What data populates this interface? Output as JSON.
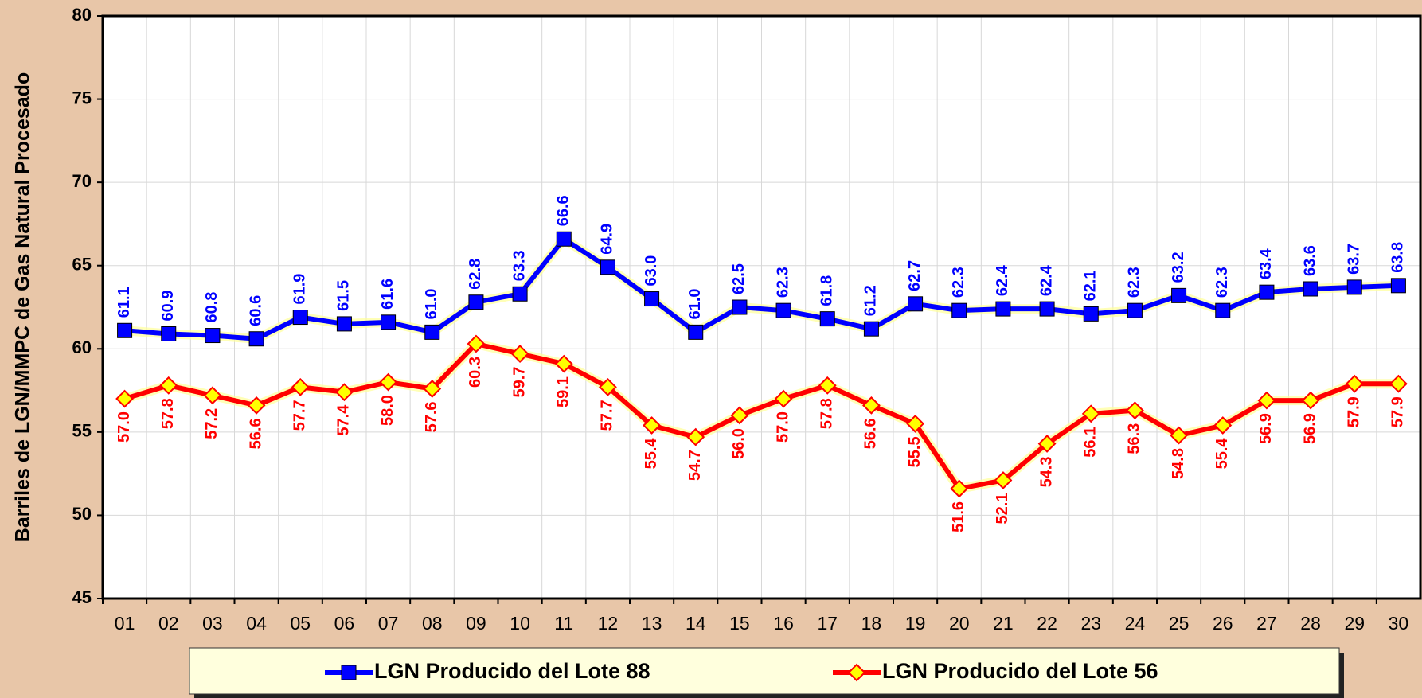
{
  "chart_data": {
    "type": "line",
    "y_label": "Barriles de LGN/MMPC de Gas Natural Procesado",
    "categories": [
      "01",
      "02",
      "03",
      "04",
      "05",
      "06",
      "07",
      "08",
      "09",
      "10",
      "11",
      "12",
      "13",
      "14",
      "15",
      "16",
      "17",
      "18",
      "19",
      "20",
      "21",
      "22",
      "23",
      "24",
      "25",
      "26",
      "27",
      "28",
      "29",
      "30"
    ],
    "series": [
      {
        "name": "LGN Producido del Lote 88",
        "color": "#0000ff",
        "marker": "square",
        "values": [
          61.1,
          60.9,
          60.8,
          60.6,
          61.9,
          61.5,
          61.6,
          61.0,
          62.8,
          63.3,
          66.6,
          64.9,
          63.0,
          61.0,
          62.5,
          62.3,
          61.8,
          61.2,
          62.7,
          62.3,
          62.4,
          62.4,
          62.1,
          62.3,
          63.2,
          62.3,
          63.4,
          63.6,
          63.7,
          63.8
        ],
        "value_labels": [
          "61.1",
          "60.9",
          "60.8",
          "60.6",
          "61.9",
          "61.5",
          "61.6",
          "61.0",
          "62.8",
          "63.3",
          "66.6",
          "64.9",
          "63.0",
          "61.0",
          "62.5",
          "62.3",
          "61.8",
          "61.2",
          "62.7",
          "62.3",
          "62.4",
          "62.4",
          "62.1",
          "62.3",
          "63.2",
          "62.3",
          "63.4",
          "63.6",
          "63.7",
          "63.8"
        ]
      },
      {
        "name": "LGN Producido del Lote 56",
        "color": "#ff0000",
        "marker": "diamond",
        "values": [
          57.0,
          57.8,
          57.2,
          56.6,
          57.7,
          57.4,
          58.0,
          57.6,
          60.3,
          59.7,
          59.1,
          57.7,
          55.4,
          54.7,
          56.0,
          57.0,
          57.8,
          56.6,
          55.5,
          51.6,
          52.1,
          54.3,
          56.1,
          56.3,
          54.8,
          55.4,
          56.9,
          56.9,
          57.9,
          57.9
        ],
        "value_labels": [
          "57.0",
          "57.8",
          "57.2",
          "56.6",
          "57.7",
          "57.4",
          "58.0",
          "57.6",
          "60.3",
          "59.7",
          "59.1",
          "57.7",
          "55.4",
          "54.7",
          "56.0",
          "57.0",
          "57.8",
          "56.6",
          "55.5",
          "51.6",
          "52.1",
          "54.3",
          "56.1",
          "56.3",
          "54.8",
          "55.4",
          "56.9",
          "56.9",
          "57.9",
          "57.9"
        ]
      }
    ],
    "ylim": [
      45,
      80
    ],
    "yticks": [
      45,
      50,
      55,
      60,
      65,
      70,
      75,
      80
    ],
    "grid": true,
    "legend": "bottom"
  }
}
